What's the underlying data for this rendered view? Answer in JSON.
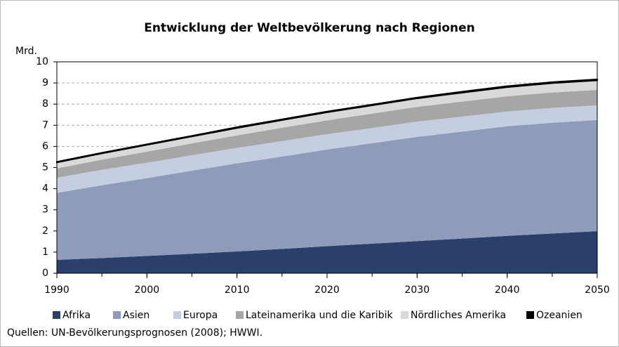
{
  "chart_data": {
    "type": "stacked_area",
    "title": "Entwicklung der Weltbevölkerung nach Regionen",
    "y_label": "Mrd.",
    "source": "Quellen: UN-Bevölkerungsprognosen (2008); HWWI.",
    "x": [
      1990,
      1995,
      2000,
      2005,
      2010,
      2015,
      2020,
      2025,
      2030,
      2035,
      2040,
      2045,
      2050
    ],
    "series": [
      {
        "name": "Afrika",
        "color": "#2b3f6b",
        "values": [
          0.63,
          0.72,
          0.82,
          0.92,
          1.03,
          1.15,
          1.28,
          1.4,
          1.52,
          1.64,
          1.77,
          1.88,
          1.99
        ]
      },
      {
        "name": "Asien",
        "color": "#8e9cba",
        "values": [
          3.17,
          3.44,
          3.68,
          3.93,
          4.17,
          4.37,
          4.57,
          4.75,
          4.93,
          5.06,
          5.18,
          5.24,
          5.26
        ]
      },
      {
        "name": "Europa",
        "color": "#c5cde0",
        "values": [
          0.72,
          0.73,
          0.73,
          0.73,
          0.73,
          0.73,
          0.73,
          0.72,
          0.72,
          0.71,
          0.7,
          0.7,
          0.69
        ]
      },
      {
        "name": "Lateinamerika und die Karibik",
        "color": "#a6a6a6",
        "values": [
          0.44,
          0.48,
          0.52,
          0.56,
          0.59,
          0.63,
          0.65,
          0.68,
          0.7,
          0.71,
          0.72,
          0.73,
          0.73
        ]
      },
      {
        "name": "Nördliches Amerika",
        "color": "#d9d9d9",
        "values": [
          0.28,
          0.3,
          0.32,
          0.33,
          0.35,
          0.36,
          0.38,
          0.39,
          0.4,
          0.42,
          0.43,
          0.44,
          0.45
        ]
      },
      {
        "name": "Ozeanien",
        "color": "#000000",
        "values": [
          0.03,
          0.03,
          0.03,
          0.03,
          0.04,
          0.04,
          0.04,
          0.04,
          0.04,
          0.05,
          0.05,
          0.05,
          0.05
        ]
      }
    ],
    "xlim": [
      1990,
      2050
    ],
    "xticks": [
      1990,
      2000,
      2010,
      2020,
      2030,
      2040,
      2050
    ],
    "ylim": [
      0,
      10
    ],
    "yticks": [
      0,
      1,
      2,
      3,
      4,
      5,
      6,
      7,
      8,
      9,
      10
    ],
    "grid": true
  }
}
